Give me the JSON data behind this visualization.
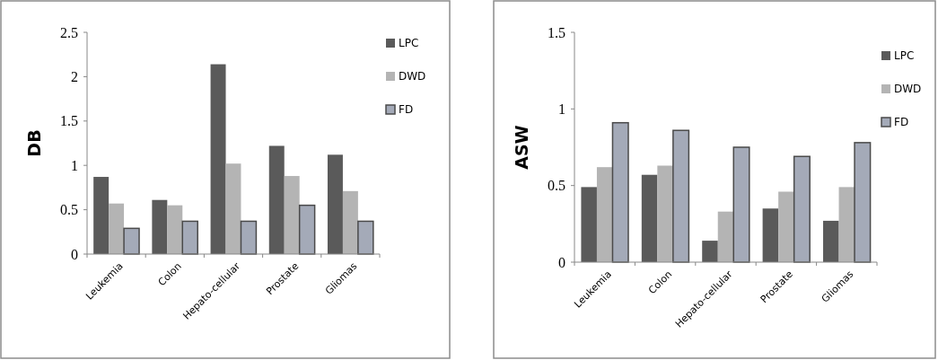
{
  "chart_data": [
    {
      "type": "bar",
      "ylabel": "DB",
      "categories": [
        "Leukemia",
        "Colon",
        "Hepato-cellular",
        "Prostate",
        "Gliomas"
      ],
      "ylim": [
        0,
        2.5
      ],
      "yticks": [
        0,
        0.5,
        1,
        1.5,
        2,
        2.5
      ],
      "legend": "right",
      "series": [
        {
          "name": "LPC",
          "color": "#5a5a5a",
          "values": [
            0.87,
            0.61,
            2.14,
            1.22,
            1.12
          ]
        },
        {
          "name": "DWD",
          "color": "#b4b4b4",
          "values": [
            0.57,
            0.55,
            1.02,
            0.88,
            0.71
          ]
        },
        {
          "name": "FD",
          "color": "#a4aab8",
          "values": [
            0.29,
            0.37,
            0.37,
            0.55,
            0.37
          ]
        }
      ]
    },
    {
      "type": "bar",
      "ylabel": "ASW",
      "categories": [
        "Leukemia",
        "Colon",
        "Hepato-cellular",
        "Prostate",
        "Gliomas"
      ],
      "ylim": [
        0,
        1.5
      ],
      "yticks": [
        0,
        0.5,
        1,
        1.5
      ],
      "legend": "right",
      "series": [
        {
          "name": "LPC",
          "color": "#5a5a5a",
          "values": [
            0.49,
            0.57,
            0.14,
            0.35,
            0.27
          ]
        },
        {
          "name": "DWD",
          "color": "#b4b4b4",
          "values": [
            0.62,
            0.63,
            0.33,
            0.46,
            0.49
          ]
        },
        {
          "name": "FD",
          "color": "#a4aab8",
          "values": [
            0.91,
            0.86,
            0.75,
            0.69,
            0.78
          ]
        }
      ]
    }
  ]
}
